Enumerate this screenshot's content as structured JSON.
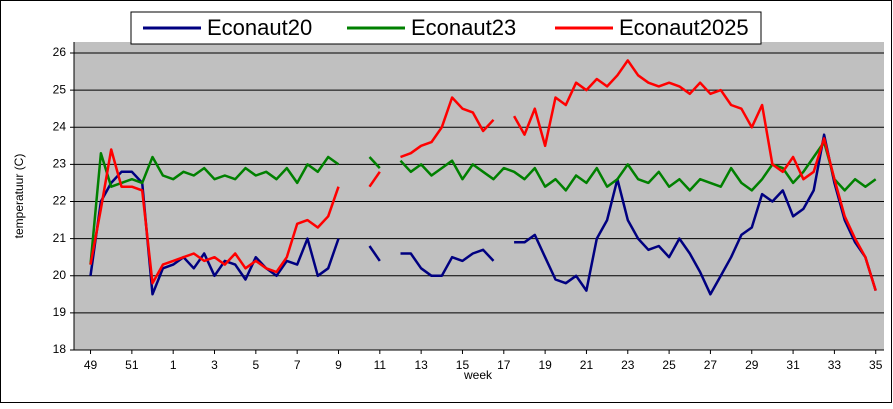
{
  "chart_data": {
    "type": "line",
    "y_label": "temperatuur (C)",
    "x_label": "week",
    "x": [
      0,
      0.5,
      1,
      1.5,
      2,
      2.5,
      3,
      3.5,
      4,
      4.5,
      5,
      5.5,
      6,
      6.5,
      7,
      7.5,
      8,
      8.5,
      9,
      9.5,
      10,
      10.5,
      11,
      11.5,
      12,
      12.5,
      13,
      13.5,
      14,
      14.5,
      15,
      15.5,
      16,
      16.5,
      17,
      17.5,
      18,
      18.5,
      19,
      19.5,
      20,
      20.5,
      21,
      21.5,
      22,
      22.5,
      23,
      23.5,
      24,
      24.5,
      25,
      25.5,
      26,
      26.5,
      27,
      27.5,
      28,
      28.5,
      29,
      29.5,
      30,
      30.5,
      31,
      31.5,
      32,
      32.5,
      33,
      33.5,
      34,
      34.5,
      35,
      35.5,
      36,
      36.5,
      37,
      37.5,
      38
    ],
    "series": [
      {
        "name": "Econaut20",
        "color": "#000080",
        "values": [
          20.0,
          22.0,
          22.5,
          22.8,
          22.8,
          22.5,
          19.5,
          20.2,
          20.3,
          20.5,
          20.2,
          20.6,
          20.0,
          20.4,
          20.3,
          19.9,
          20.5,
          20.2,
          20.0,
          20.4,
          20.3,
          21.0,
          20.0,
          20.2,
          21.0,
          null,
          null,
          20.8,
          20.4,
          null,
          20.6,
          20.6,
          20.2,
          20.0,
          20.0,
          20.5,
          20.4,
          20.6,
          20.7,
          20.4,
          null,
          20.9,
          20.9,
          21.1,
          20.5,
          19.9,
          19.8,
          20.0,
          19.6,
          21.0,
          21.5,
          22.6,
          21.5,
          21.0,
          20.7,
          20.8,
          20.5,
          21.0,
          20.6,
          20.1,
          19.5,
          20.0,
          20.5,
          21.1,
          21.3,
          22.2,
          22.0,
          22.3,
          21.6,
          21.8,
          22.3,
          23.8,
          22.5,
          21.5,
          20.9,
          20.5,
          19.6
        ]
      },
      {
        "name": "Econaut23",
        "color": "#008000",
        "values": [
          20.3,
          23.3,
          22.4,
          22.5,
          22.6,
          22.5,
          23.2,
          22.7,
          22.6,
          22.8,
          22.7,
          22.9,
          22.6,
          22.7,
          22.6,
          22.9,
          22.7,
          22.8,
          22.6,
          22.9,
          22.5,
          23.0,
          22.8,
          23.2,
          23.0,
          null,
          null,
          23.2,
          22.9,
          null,
          23.1,
          22.8,
          23.0,
          22.7,
          22.9,
          23.1,
          22.6,
          23.0,
          22.8,
          22.6,
          22.9,
          22.8,
          22.6,
          22.9,
          22.4,
          22.6,
          22.3,
          22.7,
          22.5,
          22.9,
          22.4,
          22.6,
          23.0,
          22.6,
          22.5,
          22.8,
          22.4,
          22.6,
          22.3,
          22.6,
          22.5,
          22.4,
          22.9,
          22.5,
          22.3,
          22.6,
          23.0,
          22.9,
          22.5,
          22.8,
          23.2,
          23.6,
          22.6,
          22.3,
          22.6,
          22.4,
          22.6
        ]
      },
      {
        "name": "Econaut2025",
        "color": "#ff0000",
        "values": [
          20.3,
          21.8,
          23.4,
          22.4,
          22.4,
          22.3,
          19.8,
          20.3,
          20.4,
          20.5,
          20.6,
          20.4,
          20.5,
          20.3,
          20.6,
          20.2,
          20.4,
          20.2,
          20.1,
          20.5,
          21.4,
          21.5,
          21.3,
          21.6,
          22.4,
          null,
          null,
          22.4,
          22.8,
          null,
          23.2,
          23.3,
          23.5,
          23.6,
          24.0,
          24.8,
          24.5,
          24.4,
          23.9,
          24.2,
          null,
          24.3,
          23.8,
          24.5,
          23.5,
          24.8,
          24.6,
          25.2,
          25.0,
          25.3,
          25.1,
          25.4,
          25.8,
          25.4,
          25.2,
          25.1,
          25.2,
          25.1,
          24.9,
          25.2,
          24.9,
          25.0,
          24.6,
          24.5,
          24.0,
          24.6,
          23.0,
          22.8,
          23.2,
          22.6,
          22.8,
          23.7,
          22.6,
          21.6,
          21.0,
          20.5,
          19.6
        ]
      }
    ],
    "xlim": [
      -0.8,
      38.4
    ],
    "xticks": [
      {
        "value": 0,
        "label": "49"
      },
      {
        "value": 2,
        "label": "51"
      },
      {
        "value": 4,
        "label": "1"
      },
      {
        "value": 6,
        "label": "3"
      },
      {
        "value": 8,
        "label": "5"
      },
      {
        "value": 10,
        "label": "7"
      },
      {
        "value": 12,
        "label": "9"
      },
      {
        "value": 14,
        "label": "11"
      },
      {
        "value": 16,
        "label": "13"
      },
      {
        "value": 18,
        "label": "15"
      },
      {
        "value": 20,
        "label": "17"
      },
      {
        "value": 22,
        "label": "19"
      },
      {
        "value": 24,
        "label": "21"
      },
      {
        "value": 26,
        "label": "23"
      },
      {
        "value": 28,
        "label": "25"
      },
      {
        "value": 30,
        "label": "27"
      },
      {
        "value": 32,
        "label": "29"
      },
      {
        "value": 34,
        "label": "31"
      },
      {
        "value": 36,
        "label": "33"
      },
      {
        "value": 38,
        "label": "35"
      }
    ],
    "ylim": [
      18,
      26
    ],
    "yticks": [
      18,
      19,
      20,
      21,
      22,
      23,
      24,
      25,
      26
    ],
    "grid": true,
    "legend": "top"
  }
}
